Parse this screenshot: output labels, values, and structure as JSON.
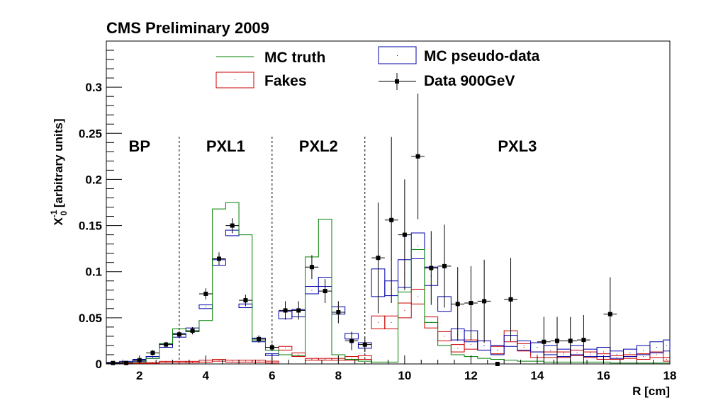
{
  "chart_data": {
    "type": "histogram",
    "title": "CMS Preliminary 2009",
    "xlabel": "R [cm]",
    "ylabel_main": "X",
    "ylabel_sub": "0",
    "ylabel_sup": "-1",
    "ylabel_rest": " [arbitrary units]",
    "xlim": [
      1,
      18
    ],
    "ylim": [
      0,
      0.35
    ],
    "xticks": [
      {
        "v": 2,
        "label": "2"
      },
      {
        "v": 4,
        "label": "4"
      },
      {
        "v": 6,
        "label": "6"
      },
      {
        "v": 8,
        "label": "8"
      },
      {
        "v": 10,
        "label": "10"
      },
      {
        "v": 12,
        "label": "12"
      },
      {
        "v": 14,
        "label": "14"
      },
      {
        "v": 16,
        "label": "16"
      },
      {
        "v": 18,
        "label": "18"
      }
    ],
    "yticks": [
      {
        "v": 0,
        "label": "0"
      },
      {
        "v": 0.05,
        "label": "0.05"
      },
      {
        "v": 0.1,
        "label": "0.1"
      },
      {
        "v": 0.15,
        "label": "0.15"
      },
      {
        "v": 0.2,
        "label": "0.2"
      },
      {
        "v": 0.25,
        "label": "0.25"
      },
      {
        "v": 0.3,
        "label": "0.3"
      }
    ],
    "bin_edges": [
      1,
      1.4,
      1.8,
      2.2,
      2.6,
      3,
      3.4,
      3.8,
      4.2,
      4.6,
      5,
      5.4,
      5.8,
      6.2,
      6.6,
      7,
      7.4,
      7.8,
      8.2,
      8.6,
      9,
      9.4,
      9.8,
      10.2,
      10.6,
      11,
      11.4,
      11.8,
      12.2,
      12.6,
      13,
      13.4,
      13.8,
      14.2,
      14.6,
      15,
      15.4,
      15.8,
      16.2,
      16.6,
      17,
      17.4,
      17.8,
      18.2
    ],
    "dividers": [
      3.2,
      6.0,
      8.8
    ],
    "regions": [
      {
        "label": "BP",
        "x": 2.0
      },
      {
        "label": "PXL1",
        "x": 4.6
      },
      {
        "label": "PXL2",
        "x": 7.4
      },
      {
        "label": "PXL3",
        "x": 13.4
      }
    ],
    "legend": {
      "mc_truth": "MC truth",
      "fakes": "Fakes",
      "mc_pseudo": "MC pseudo-data",
      "data": "Data 900GeV"
    },
    "colors": {
      "mc_truth": "#008000",
      "fakes": "#cc0000",
      "mc_pseudo": "#0000aa",
      "data": "#000000"
    },
    "series": [
      {
        "id": "mc_truth",
        "values": [
          0.001,
          0.001,
          0.002,
          0.006,
          0.022,
          0.038,
          0.035,
          0.047,
          0.168,
          0.175,
          0.14,
          0.025,
          0.015,
          0.01,
          0.009,
          0.116,
          0.157,
          0.01,
          0.005,
          0.003,
          0.002,
          0.002,
          0.078,
          0.124,
          0.045,
          0.02,
          0.01,
          0.008,
          0.006,
          0.005,
          0.004,
          0.003,
          0.003,
          0.002,
          0.002,
          0.002,
          0.002,
          0.002,
          0.001,
          0.001,
          0.001,
          0.001,
          0.001
        ]
      },
      {
        "id": "fakes",
        "values": [
          0.001,
          0.001,
          0.001,
          0.001,
          0.002,
          0.002,
          0.002,
          0.003,
          0.004,
          0.003,
          0.003,
          0.003,
          0.002,
          0.017,
          0.01,
          0.005,
          0.005,
          0.005,
          0.006,
          0.007,
          0.045,
          0.045,
          0.058,
          0.073,
          0.045,
          0.03,
          0.017,
          0.021,
          0.02,
          0.015,
          0.03,
          0.018,
          0.01,
          0.01,
          0.01,
          0.012,
          0.01,
          0.008,
          0.007,
          0.008,
          0.008,
          0.01,
          0.005
        ],
        "errors": [
          0.0005,
          0.0005,
          0.0005,
          0.0005,
          0.0008,
          0.0008,
          0.0008,
          0.001,
          0.001,
          0.001,
          0.001,
          0.001,
          0.001,
          0.002,
          0.002,
          0.001,
          0.001,
          0.001,
          0.002,
          0.002,
          0.007,
          0.007,
          0.008,
          0.008,
          0.006,
          0.005,
          0.004,
          0.005,
          0.005,
          0.004,
          0.006,
          0.004,
          0.003,
          0.003,
          0.003,
          0.003,
          0.003,
          0.003,
          0.002,
          0.002,
          0.003,
          0.003,
          0.002
        ]
      },
      {
        "id": "mc_pseudo",
        "values": [
          0.001,
          0.002,
          0.004,
          0.007,
          0.02,
          0.031,
          0.037,
          0.062,
          0.11,
          0.142,
          0.063,
          0.026,
          0.01,
          0.053,
          0.055,
          0.08,
          0.089,
          0.058,
          0.03,
          0.02,
          0.088,
          0.082,
          0.098,
          0.128,
          0.095,
          0.065,
          0.032,
          0.03,
          0.02,
          0.015,
          0.025,
          0.02,
          0.018,
          0.015,
          0.012,
          0.015,
          0.012,
          0.013,
          0.01,
          0.012,
          0.015,
          0.018,
          0.02
        ],
        "errors": [
          0.0005,
          0.0008,
          0.001,
          0.001,
          0.002,
          0.002,
          0.002,
          0.002,
          0.003,
          0.003,
          0.002,
          0.002,
          0.001,
          0.004,
          0.004,
          0.004,
          0.005,
          0.004,
          0.003,
          0.003,
          0.015,
          0.008,
          0.015,
          0.014,
          0.01,
          0.008,
          0.006,
          0.006,
          0.005,
          0.005,
          0.006,
          0.005,
          0.005,
          0.005,
          0.004,
          0.005,
          0.004,
          0.005,
          0.004,
          0.004,
          0.005,
          0.006,
          0.006
        ]
      },
      {
        "id": "data",
        "points": [
          {
            "x": 1.2,
            "y": 0.001,
            "err": 0.001
          },
          {
            "x": 1.6,
            "y": 0.001,
            "err": 0.001
          },
          {
            "x": 2.0,
            "y": 0.004,
            "err": 0.002
          },
          {
            "x": 2.4,
            "y": 0.012,
            "err": 0.003
          },
          {
            "x": 2.8,
            "y": 0.021,
            "err": 0.003
          },
          {
            "x": 3.2,
            "y": 0.032,
            "err": 0.004
          },
          {
            "x": 3.6,
            "y": 0.036,
            "err": 0.004
          },
          {
            "x": 4.0,
            "y": 0.076,
            "err": 0.006
          },
          {
            "x": 4.4,
            "y": 0.114,
            "err": 0.007
          },
          {
            "x": 4.8,
            "y": 0.15,
            "err": 0.008
          },
          {
            "x": 5.2,
            "y": 0.069,
            "err": 0.006
          },
          {
            "x": 5.6,
            "y": 0.027,
            "err": 0.004
          },
          {
            "x": 6.0,
            "y": 0.018,
            "err": 0.004
          },
          {
            "x": 6.4,
            "y": 0.058,
            "err": 0.01
          },
          {
            "x": 6.8,
            "y": 0.058,
            "err": 0.01
          },
          {
            "x": 7.2,
            "y": 0.105,
            "err": 0.013
          },
          {
            "x": 7.6,
            "y": 0.079,
            "err": 0.013
          },
          {
            "x": 8.0,
            "y": 0.056,
            "err": 0.012
          },
          {
            "x": 8.4,
            "y": 0.025,
            "err": 0.01
          },
          {
            "x": 8.8,
            "y": 0.021,
            "err": 0.008
          },
          {
            "x": 9.2,
            "y": 0.115,
            "err": 0.06
          },
          {
            "x": 9.6,
            "y": 0.156,
            "err": 0.09
          },
          {
            "x": 10.0,
            "y": 0.14,
            "err": 0.06
          },
          {
            "x": 10.4,
            "y": 0.225,
            "err": 0.068
          },
          {
            "x": 10.8,
            "y": 0.104,
            "err": 0.04
          },
          {
            "x": 11.2,
            "y": 0.106,
            "err": 0.045
          },
          {
            "x": 11.6,
            "y": 0.065,
            "err": 0.04
          },
          {
            "x": 12.0,
            "y": 0.066,
            "err": 0.04
          },
          {
            "x": 12.4,
            "y": 0.068,
            "err": 0.045
          },
          {
            "x": 12.8,
            "y": 0.0,
            "err": 0.0
          },
          {
            "x": 13.2,
            "y": 0.07,
            "err": 0.045
          },
          {
            "x": 14.2,
            "y": 0.024,
            "err": 0.027
          },
          {
            "x": 14.6,
            "y": 0.025,
            "err": 0.026
          },
          {
            "x": 15.0,
            "y": 0.025,
            "err": 0.026
          },
          {
            "x": 15.4,
            "y": 0.026,
            "err": 0.027
          },
          {
            "x": 16.2,
            "y": 0.054,
            "err": 0.04
          }
        ]
      }
    ]
  }
}
